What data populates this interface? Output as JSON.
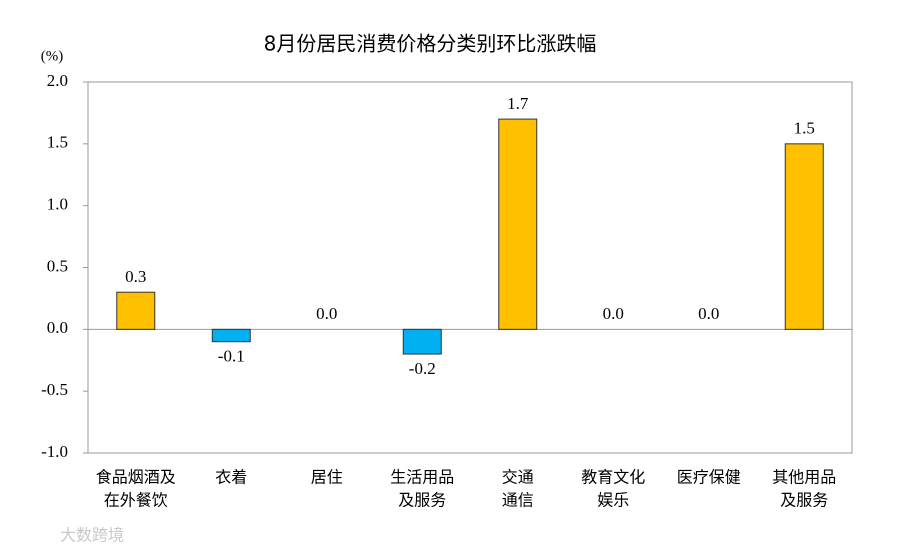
{
  "chart_data": {
    "type": "bar",
    "title": "8月份居民消费价格分类别环比涨跌幅",
    "y_unit": "(%)",
    "categories": [
      [
        "食品烟酒及",
        "在外餐饮"
      ],
      [
        "衣着"
      ],
      [
        "居住"
      ],
      [
        "生活用品",
        "及服务"
      ],
      [
        "交通",
        "通信"
      ],
      [
        "教育文化",
        "娱乐"
      ],
      [
        "医疗保健"
      ],
      [
        "其他用品",
        "及服务"
      ]
    ],
    "values": [
      0.3,
      -0.1,
      0.0,
      -0.2,
      1.7,
      0.0,
      0.0,
      1.5
    ],
    "value_labels": [
      "0.3",
      "-0.1",
      "0.0",
      "-0.2",
      "1.7",
      "0.0",
      "0.0",
      "1.5"
    ],
    "positive_color": "#ffc000",
    "negative_color": "#00b0f0",
    "ylim": [
      -1.0,
      2.0
    ],
    "yticks": [
      {
        "value": -1,
        "label": "-1.0"
      },
      {
        "value": -0.5,
        "label": "-0.5"
      },
      {
        "value": 0,
        "label": "0.0"
      },
      {
        "value": 0.5,
        "label": "0.5"
      },
      {
        "value": 1,
        "label": "1.0"
      },
      {
        "value": 1.5,
        "label": "1.5"
      },
      {
        "value": 2,
        "label": "2.0"
      }
    ],
    "watermark": "大数跨境"
  }
}
